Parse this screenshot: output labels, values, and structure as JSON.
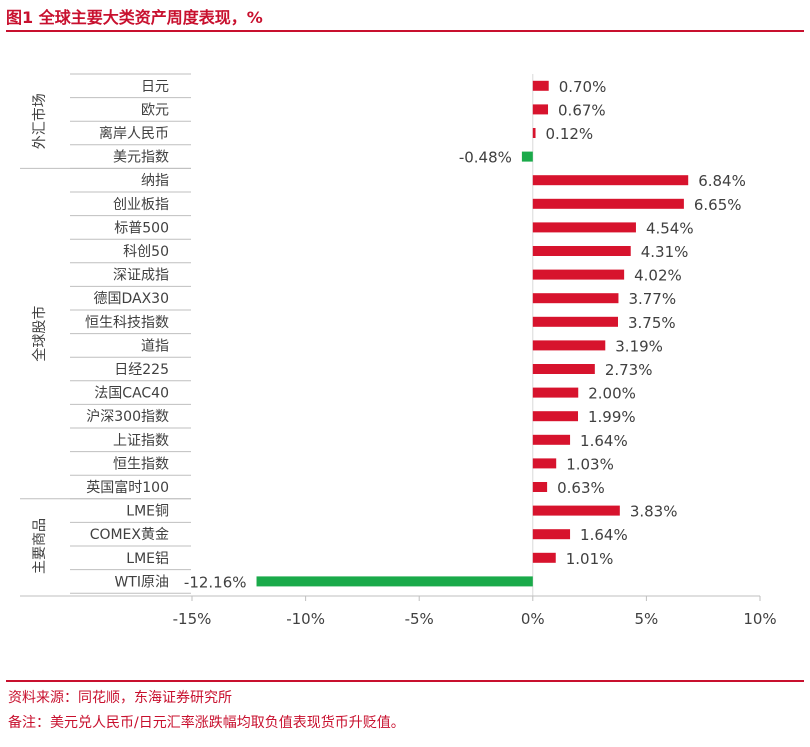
{
  "figure_title": "图1  全球主要大类资产周度表现，%",
  "source_note": "资料来源：同花顺，东海证券研究所",
  "remark_note": "备注：美元兑人民币/日元汇率涨跌幅均取负值表现货币升贬值。",
  "colors": {
    "positive": "#d7132d",
    "negative": "#1aaa4a",
    "accent": "#c8102e"
  },
  "chart_data": {
    "type": "bar",
    "orientation": "horizontal",
    "title": "",
    "xlabel": "",
    "ylabel": "",
    "xlim": [
      -15,
      10
    ],
    "x_ticks": [
      -15,
      -10,
      -5,
      0,
      5,
      10
    ],
    "x_tick_labels": [
      "-15%",
      "-10%",
      "-5%",
      "0%",
      "5%",
      "10%"
    ],
    "groups": [
      {
        "name": "外汇市场",
        "categories": [
          "日元",
          "欧元",
          "离岸人民币",
          "美元指数"
        ]
      },
      {
        "name": "全球股市",
        "categories": [
          "纳指",
          "创业板指",
          "标普500",
          "科创50",
          "深证成指",
          "德国DAX30",
          "恒生科技指数",
          "道指",
          "日经225",
          "法国CAC40",
          "沪深300指数",
          "上证指数",
          "恒生指数",
          "英国富时100"
        ]
      },
      {
        "name": "主要商品",
        "categories": [
          "LME铜",
          "COMEX黄金",
          "LME铝",
          "WTI原油"
        ]
      }
    ],
    "categories": [
      "日元",
      "欧元",
      "离岸人民币",
      "美元指数",
      "纳指",
      "创业板指",
      "标普500",
      "科创50",
      "深证成指",
      "德国DAX30",
      "恒生科技指数",
      "道指",
      "日经225",
      "法国CAC40",
      "沪深300指数",
      "上证指数",
      "恒生指数",
      "英国富时100",
      "LME铜",
      "COMEX黄金",
      "LME铝",
      "WTI原油"
    ],
    "values": [
      0.7,
      0.67,
      0.12,
      -0.48,
      6.84,
      6.65,
      4.54,
      4.31,
      4.02,
      3.77,
      3.75,
      3.19,
      2.73,
      2.0,
      1.99,
      1.64,
      1.03,
      0.63,
      3.83,
      1.64,
      1.01,
      -12.16
    ],
    "value_labels": [
      "0.70%",
      "0.67%",
      "0.12%",
      "-0.48%",
      "6.84%",
      "6.65%",
      "4.54%",
      "4.31%",
      "4.02%",
      "3.77%",
      "3.75%",
      "3.19%",
      "2.73%",
      "2.00%",
      "1.99%",
      "1.64%",
      "1.03%",
      "0.63%",
      "3.83%",
      "1.64%",
      "1.01%",
      "-12.16%"
    ],
    "grid": false,
    "legend": "none"
  }
}
